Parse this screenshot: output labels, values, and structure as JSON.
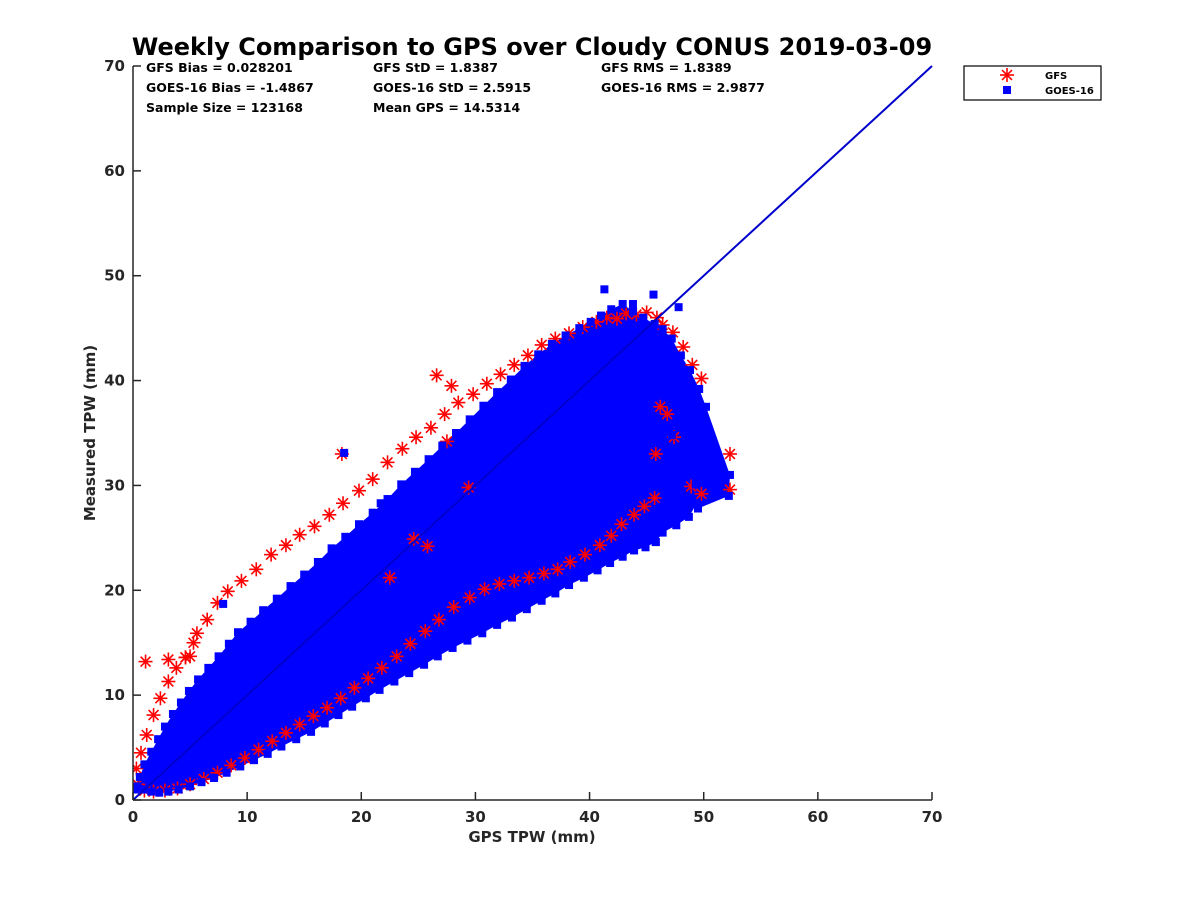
{
  "chart_data": {
    "type": "scatter",
    "title": "Weekly Comparison to GPS over Cloudy CONUS 2019-03-09",
    "xlabel": "GPS TPW (mm)",
    "ylabel": "Measured TPW (mm)",
    "xlim": [
      0,
      70
    ],
    "ylim": [
      0,
      70
    ],
    "xticks": [
      0,
      10,
      20,
      30,
      40,
      50,
      60,
      70
    ],
    "yticks": [
      0,
      10,
      20,
      30,
      40,
      50,
      60,
      70
    ],
    "grid": false,
    "legend_position": "top-right outside",
    "stats": [
      "GFS Bias = 0.028201",
      "GFS StD = 1.8387",
      "GFS RMS = 1.8389",
      "GOES-16 Bias = -1.4867",
      "GOES-16 StD = 2.5915",
      "GOES-16 RMS = 2.9877",
      "Sample Size = 123168",
      "Mean GPS = 14.5314"
    ],
    "reference_line": {
      "x": [
        0,
        70
      ],
      "y": [
        0,
        70
      ],
      "color": "#0000cc"
    },
    "series": [
      {
        "name": "GFS",
        "marker": "asterisk",
        "color": "#ff0000",
        "x": [
          0.3,
          0.7,
          1.2,
          1.8,
          2.4,
          3.1,
          3.8,
          4.6,
          5.3,
          5.6,
          6.5,
          7.4,
          8.3,
          9.5,
          10.8,
          12.1,
          13.4,
          14.6,
          15.9,
          17.2,
          18.4,
          19.8,
          21.0,
          22.3,
          23.6,
          24.8,
          26.1,
          27.3,
          28.5,
          29.8,
          31.0,
          32.2,
          33.4,
          34.6,
          35.8,
          37.0,
          38.2,
          39.4,
          40.6,
          41.5,
          42.4,
          43.2,
          44.1,
          45.0,
          45.9,
          46.4,
          47.3,
          48.2,
          49.0,
          49.8,
          52.3,
          52.3,
          49.8,
          48.9,
          47.4,
          46.8,
          46.2,
          45.8,
          45.7,
          44.8,
          43.9,
          42.8,
          41.9,
          40.9,
          39.6,
          38.3,
          37.2,
          36.0,
          34.7,
          33.4,
          32.1,
          30.8,
          29.5,
          28.1,
          26.8,
          25.6,
          24.3,
          23.1,
          21.8,
          20.6,
          19.4,
          18.2,
          17.0,
          15.8,
          14.6,
          13.4,
          12.2,
          11.0,
          9.8,
          8.6,
          7.4,
          6.2,
          5.0,
          3.9,
          2.8,
          1.8,
          1.0,
          0.4,
          1.1,
          3.1,
          4.6,
          5.0,
          18.3,
          26.6,
          27.9,
          27.5,
          24.6,
          25.8,
          22.5,
          29.4
        ],
        "y": [
          3.0,
          4.5,
          6.2,
          8.1,
          9.7,
          11.3,
          12.6,
          13.6,
          15.0,
          15.9,
          17.2,
          18.8,
          19.9,
          20.9,
          22.0,
          23.4,
          24.3,
          25.3,
          26.1,
          27.2,
          28.3,
          29.5,
          30.6,
          32.2,
          33.5,
          34.6,
          35.5,
          36.8,
          37.9,
          38.7,
          39.7,
          40.6,
          41.5,
          42.4,
          43.4,
          44.0,
          44.5,
          45.1,
          45.6,
          46.0,
          45.9,
          46.4,
          46.3,
          46.5,
          46.0,
          45.3,
          44.6,
          43.2,
          41.5,
          40.2,
          33.0,
          29.6,
          29.2,
          29.9,
          34.6,
          36.8,
          37.5,
          33.0,
          28.8,
          28.0,
          27.2,
          26.3,
          25.2,
          24.3,
          23.4,
          22.7,
          22.0,
          21.6,
          21.2,
          20.9,
          20.6,
          20.1,
          19.3,
          18.4,
          17.2,
          16.1,
          14.9,
          13.7,
          12.6,
          11.6,
          10.7,
          9.7,
          8.8,
          8.0,
          7.2,
          6.4,
          5.6,
          4.8,
          4.0,
          3.3,
          2.6,
          2.0,
          1.5,
          1.1,
          0.9,
          0.8,
          0.9,
          1.5,
          13.2,
          13.4,
          13.6,
          13.7,
          33.0,
          40.5,
          39.5,
          34.2,
          24.9,
          24.2,
          21.2,
          29.8
        ]
      },
      {
        "name": "GOES-16",
        "marker": "square",
        "color": "#0000ff",
        "x": [
          0.2,
          0.6,
          1.0,
          1.6,
          2.2,
          2.8,
          3.5,
          4.2,
          4.9,
          5.7,
          6.6,
          7.5,
          8.4,
          9.2,
          10.3,
          11.4,
          12.6,
          13.8,
          15.0,
          16.2,
          17.4,
          18.6,
          19.8,
          21.0,
          22.3,
          23.5,
          24.7,
          25.9,
          27.1,
          28.3,
          29.5,
          30.7,
          31.9,
          33.1,
          34.3,
          35.5,
          36.7,
          37.9,
          39.1,
          40.1,
          41.0,
          41.9,
          42.9,
          43.8,
          44.7,
          45.7,
          46.4,
          47.2,
          48.0,
          48.8,
          49.6,
          50.2,
          52.3,
          52.2,
          49.5,
          49.4,
          48.7,
          47.6,
          46.4,
          45.8,
          44.9,
          43.9,
          42.9,
          41.8,
          40.7,
          39.5,
          38.2,
          37.0,
          35.8,
          34.5,
          33.2,
          31.9,
          30.6,
          29.3,
          28.0,
          26.7,
          25.5,
          24.2,
          22.9,
          21.6,
          20.4,
          19.2,
          18.0,
          16.8,
          15.6,
          14.3,
          13.0,
          11.8,
          10.6,
          9.4,
          8.2,
          7.1,
          6.0,
          5.0,
          4.0,
          3.1,
          2.3,
          1.6,
          0.9,
          0.4,
          41.3,
          43.8,
          45.6,
          47.8,
          49.3,
          45.8,
          46.2,
          47.2,
          43.2,
          18.5,
          7.9,
          21.7
        ],
        "y": [
          1.0,
          2.2,
          3.4,
          4.6,
          5.8,
          7.0,
          8.2,
          9.3,
          10.4,
          11.5,
          12.6,
          13.7,
          14.9,
          16.0,
          17.0,
          18.1,
          19.2,
          20.4,
          21.5,
          22.7,
          24.0,
          25.1,
          26.3,
          27.4,
          28.7,
          30.1,
          31.3,
          32.5,
          33.8,
          35.0,
          36.3,
          37.6,
          38.9,
          40.1,
          41.4,
          42.5,
          43.5,
          44.3,
          45.0,
          45.6,
          46.2,
          46.8,
          47.3,
          46.6,
          46.0,
          45.4,
          44.9,
          44.0,
          42.4,
          41.0,
          39.2,
          37.5,
          31.0,
          29.0,
          27.8,
          28.3,
          27.0,
          26.2,
          25.5,
          24.6,
          24.1,
          23.8,
          23.2,
          22.6,
          21.9,
          21.2,
          20.5,
          19.7,
          19.0,
          18.2,
          17.4,
          16.7,
          15.9,
          15.2,
          14.5,
          13.7,
          12.9,
          12.1,
          11.3,
          10.5,
          9.7,
          8.9,
          8.1,
          7.3,
          6.5,
          5.8,
          5.1,
          4.4,
          3.8,
          3.2,
          2.6,
          2.1,
          1.7,
          1.3,
          1.0,
          0.8,
          0.7,
          0.8,
          1.0,
          1.3,
          48.7,
          47.3,
          48.2,
          47.0,
          30.1,
          24.6,
          26.3,
          34.8,
          36.5,
          33.1,
          18.7,
          28.3
        ]
      }
    ]
  }
}
